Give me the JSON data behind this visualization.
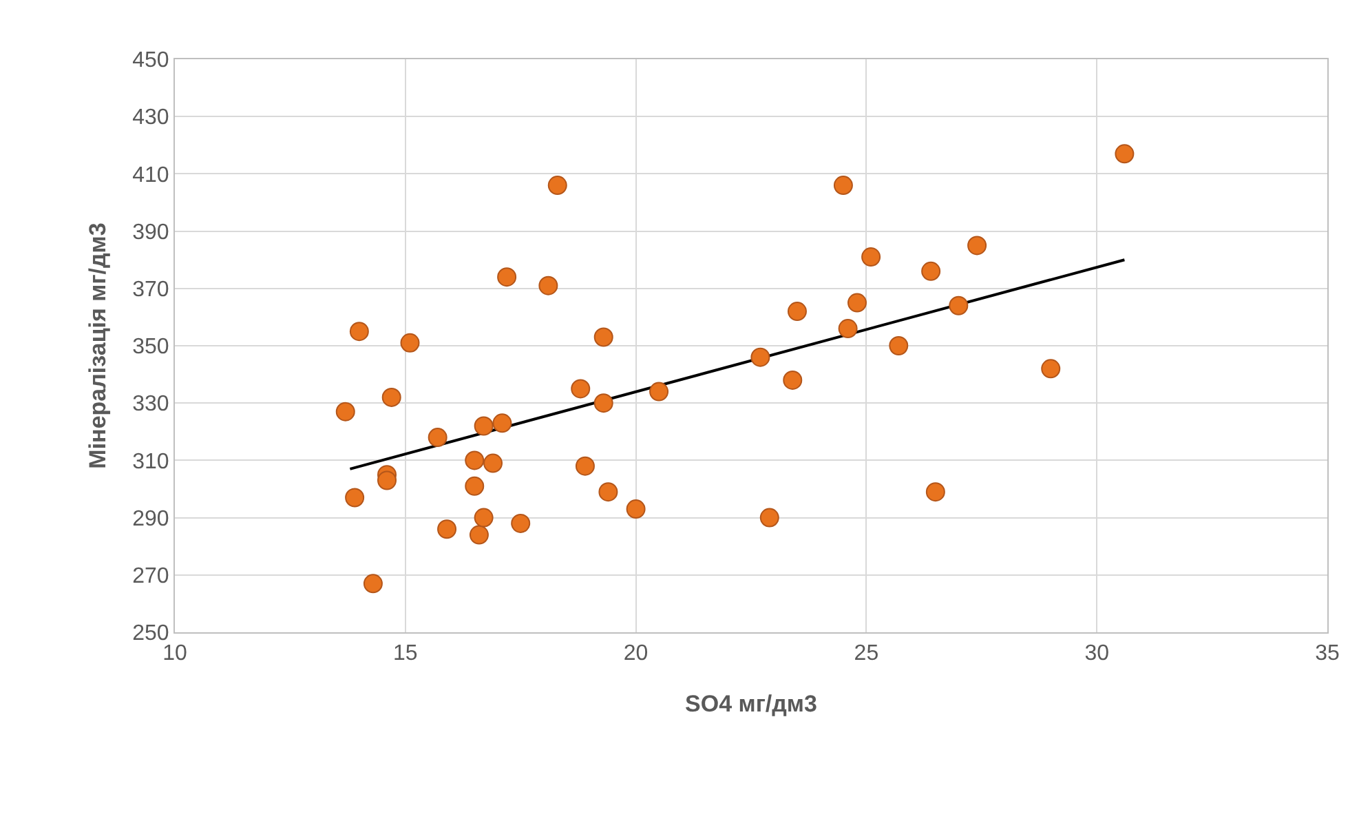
{
  "chart_data": {
    "type": "scatter",
    "xlabel": "SO4 мг/дм3",
    "ylabel": "Мінералізація мг/дм3",
    "xlim": [
      10,
      35
    ],
    "xticks": [
      10,
      15,
      20,
      25,
      30,
      35
    ],
    "ylim": [
      250,
      450
    ],
    "yticks": [
      250,
      270,
      290,
      310,
      330,
      350,
      370,
      390,
      410,
      430,
      450
    ],
    "grid": true,
    "series": [
      {
        "marker": "circle",
        "color": "#e8731e",
        "x": [
          13.7,
          13.9,
          14.0,
          14.3,
          14.6,
          14.6,
          14.7,
          15.1,
          15.7,
          15.9,
          16.5,
          16.5,
          16.6,
          16.7,
          16.7,
          16.9,
          17.1,
          17.2,
          17.5,
          18.1,
          18.3,
          18.8,
          18.9,
          19.3,
          19.3,
          19.4,
          20.0,
          20.5,
          22.7,
          22.9,
          23.4,
          23.5,
          24.5,
          24.6,
          24.8,
          25.1,
          25.7,
          26.4,
          26.5,
          27.0,
          27.4,
          29.0,
          30.6
        ],
        "values": [
          327,
          297,
          355,
          267,
          305,
          303,
          332,
          351,
          318,
          286,
          310,
          301,
          284,
          322,
          290,
          309,
          323,
          374,
          288,
          371,
          406,
          335,
          308,
          353,
          330,
          299,
          293,
          334,
          346,
          290,
          338,
          362,
          406,
          356,
          365,
          381,
          350,
          376,
          299,
          364,
          385,
          342,
          417
        ]
      },
      {
        "type": "line",
        "color": "#000000",
        "x": [
          13.8,
          30.6
        ],
        "values": [
          307,
          380
        ]
      }
    ]
  }
}
